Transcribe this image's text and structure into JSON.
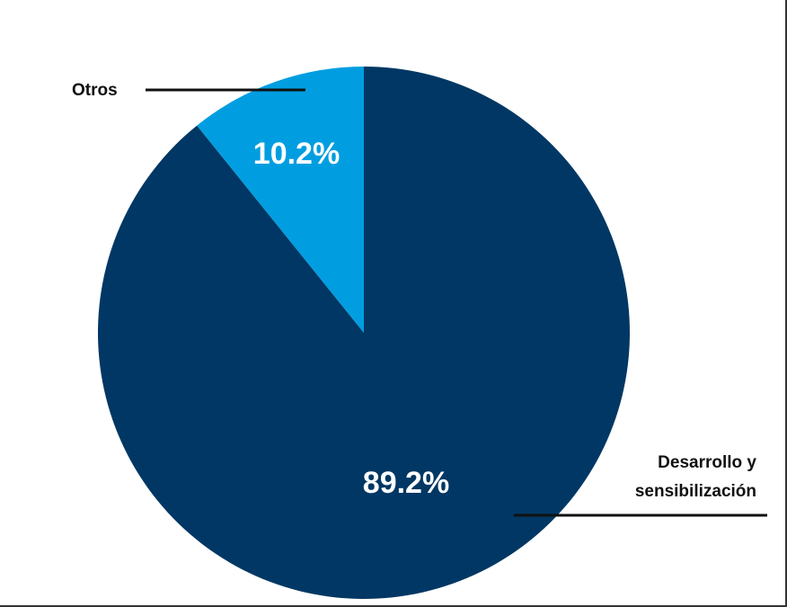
{
  "chart_data": {
    "type": "pie",
    "title": "",
    "slices": [
      {
        "label": "Desarrollo y sensibilización",
        "label_lines": [
          "Desarrollo y",
          "sensibilización"
        ],
        "value": 89.2,
        "display": "89.2%",
        "color": "#003764"
      },
      {
        "label": "Otros",
        "label_lines": [
          "Otros"
        ],
        "value": 10.2,
        "display": "10.2%",
        "color": "#009ee0"
      }
    ],
    "start_angle_deg": 0,
    "direction": "clockwise",
    "legend": "none"
  }
}
